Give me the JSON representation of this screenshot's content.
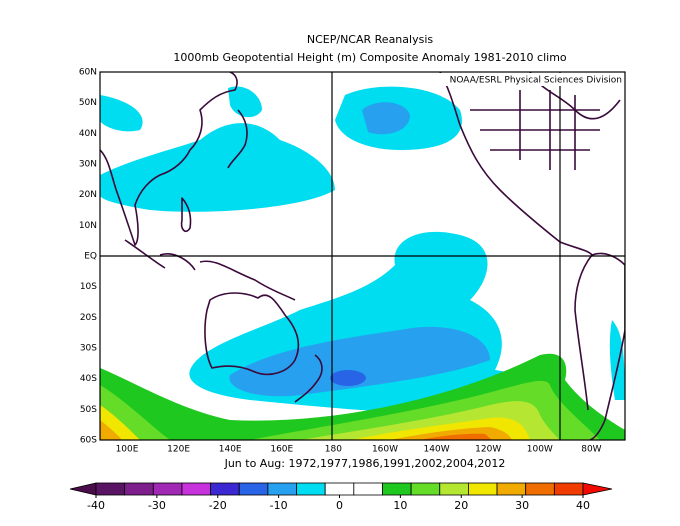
{
  "title": "NCEP/NCAR Reanalysis",
  "subtitle": "1000mb Geopotential Height (m) Composite Anomaly 1981-2010 climo",
  "attribution": "NOAA/ESRL Physical Sciences Division",
  "period": "Jun to Aug: 1972,1977,1986,1991,2002,2004,2012",
  "lat_labels": [
    "60N",
    "50N",
    "40N",
    "30N",
    "20N",
    "10N",
    "EQ",
    "10S",
    "20S",
    "30S",
    "40S",
    "50S",
    "60S"
  ],
  "lon_labels": [
    "100E",
    "120E",
    "140E",
    "160E",
    "180",
    "160W",
    "140W",
    "120W",
    "100W",
    "80W"
  ],
  "colorbar": {
    "lim": [
      -40,
      40
    ],
    "ticks": [
      -40,
      -30,
      -20,
      -10,
      0,
      10,
      20,
      30,
      40
    ],
    "colors": [
      "#4a0c4a",
      "#5a1464",
      "#7d1e8c",
      "#a028b4",
      "#c832dc",
      "#3c28d2",
      "#2864e6",
      "#28a0f0",
      "#00dcf0",
      "#ffffff",
      "#ffffff",
      "#1ec81e",
      "#64dc28",
      "#b4e632",
      "#f0e600",
      "#f0aa00",
      "#f06e00",
      "#f03c00",
      "#f00a00"
    ]
  }
}
